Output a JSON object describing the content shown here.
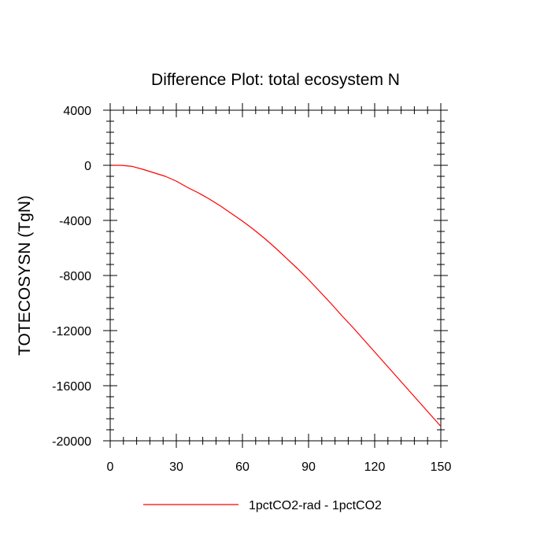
{
  "chart_data": {
    "type": "line",
    "title": "Difference Plot: total ecosystem N",
    "xlabel": "",
    "ylabel": "TOTECOSYSN  (TgN)",
    "xlim": [
      0,
      150
    ],
    "ylim": [
      -20000,
      4000
    ],
    "xticks": [
      0,
      30,
      60,
      90,
      120,
      150
    ],
    "xtick_labels": [
      "0",
      "30",
      "60",
      "90",
      "120",
      "150"
    ],
    "yticks": [
      4000,
      0,
      -4000,
      -8000,
      -12000,
      -16000,
      -20000
    ],
    "ytick_labels": [
      "4000",
      "0",
      "-4000",
      "-8000",
      "-12000",
      "-16000",
      "-20000"
    ],
    "grid": false,
    "legend_position": "bottom-center",
    "series": [
      {
        "name": "1pctCO2-rad - 1pctCO2",
        "color": "#ff0000",
        "x": [
          1,
          5,
          10,
          15,
          20,
          25,
          30,
          35,
          40,
          45,
          50,
          55,
          60,
          65,
          70,
          75,
          80,
          85,
          90,
          95,
          100,
          105,
          110,
          115,
          120,
          125,
          130,
          135,
          140,
          145,
          150
        ],
        "y": [
          0,
          0,
          -80,
          -300,
          -550,
          -800,
          -1150,
          -1600,
          -2000,
          -2450,
          -2950,
          -3500,
          -4050,
          -4650,
          -5300,
          -6000,
          -6750,
          -7500,
          -8300,
          -9150,
          -10000,
          -10900,
          -11750,
          -12650,
          -13550,
          -14450,
          -15350,
          -16250,
          -17150,
          -18050,
          -18950
        ]
      }
    ]
  }
}
